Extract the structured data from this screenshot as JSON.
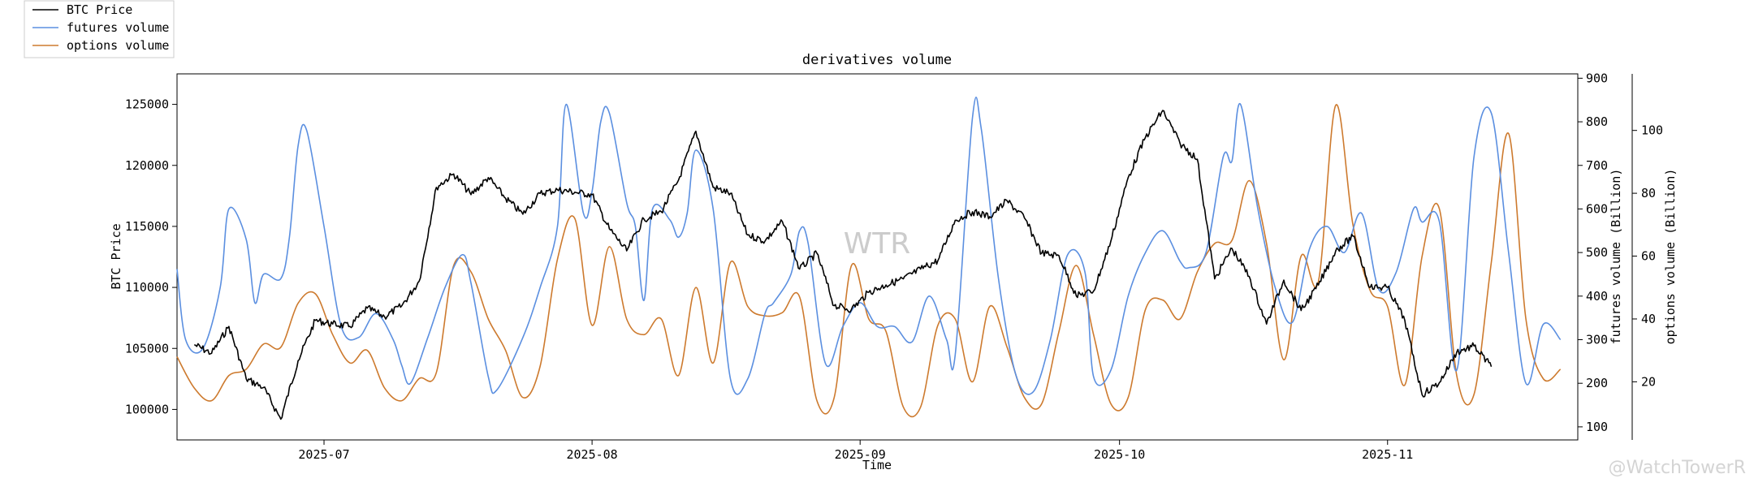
{
  "chart_data": {
    "type": "line",
    "title": "derivatives volume",
    "xlabel": "Time",
    "x_ticks": [
      "2025-07",
      "2025-08",
      "2025-09",
      "2025-10",
      "2025-11"
    ],
    "x_range": [
      "2025-06-14",
      "2025-11-23"
    ],
    "left_axis": {
      "label": "BTC Price",
      "ylim": [
        97500,
        127500
      ],
      "ticks": [
        100000,
        105000,
        110000,
        115000,
        120000,
        125000
      ]
    },
    "right_axis_1": {
      "label": "futures volume (Billion)",
      "ylim": [
        70,
        910
      ],
      "ticks": [
        100,
        200,
        300,
        400,
        500,
        600,
        700,
        800,
        900
      ]
    },
    "right_axis_2": {
      "label": "options volume (Billion)",
      "ylim": [
        1.5,
        118
      ],
      "ticks": [
        20,
        40,
        60,
        80,
        100
      ]
    },
    "legend": {
      "placement": "upper-left outside",
      "entries": [
        "BTC Price",
        "futures volume",
        "options volume"
      ]
    },
    "grid": false,
    "series": [
      {
        "name": "BTC Price",
        "axis": "left",
        "color": "#000000",
        "points": [
          [
            "2025-06-16",
            105300
          ],
          [
            "2025-06-18",
            104600
          ],
          [
            "2025-06-20",
            106800
          ],
          [
            "2025-06-22",
            102500
          ],
          [
            "2025-06-24",
            101800
          ],
          [
            "2025-06-26",
            99200
          ],
          [
            "2025-06-28",
            104000
          ],
          [
            "2025-06-30",
            107300
          ],
          [
            "2025-07-02",
            107000
          ],
          [
            "2025-07-04",
            106800
          ],
          [
            "2025-07-06",
            108300
          ],
          [
            "2025-07-08",
            107600
          ],
          [
            "2025-07-10",
            108500
          ],
          [
            "2025-07-12",
            110500
          ],
          [
            "2025-07-14",
            118200
          ],
          [
            "2025-07-16",
            119300
          ],
          [
            "2025-07-18",
            117600
          ],
          [
            "2025-07-20",
            119000
          ],
          [
            "2025-07-22",
            117300
          ],
          [
            "2025-07-24",
            116000
          ],
          [
            "2025-07-26",
            117700
          ],
          [
            "2025-07-28",
            118000
          ],
          [
            "2025-07-30",
            117800
          ],
          [
            "2025-08-01",
            117600
          ],
          [
            "2025-08-03",
            114800
          ],
          [
            "2025-08-05",
            113000
          ],
          [
            "2025-08-07",
            115600
          ],
          [
            "2025-08-09",
            116200
          ],
          [
            "2025-08-11",
            118800
          ],
          [
            "2025-08-13",
            122800
          ],
          [
            "2025-08-15",
            118200
          ],
          [
            "2025-08-17",
            117700
          ],
          [
            "2025-08-19",
            114300
          ],
          [
            "2025-08-21",
            113800
          ],
          [
            "2025-08-23",
            115400
          ],
          [
            "2025-08-25",
            111500
          ],
          [
            "2025-08-27",
            112800
          ],
          [
            "2025-08-29",
            108500
          ],
          [
            "2025-08-31",
            108200
          ],
          [
            "2025-09-02",
            109600
          ],
          [
            "2025-09-04",
            110200
          ],
          [
            "2025-09-06",
            110700
          ],
          [
            "2025-09-08",
            111500
          ],
          [
            "2025-09-10",
            112200
          ],
          [
            "2025-09-12",
            115500
          ],
          [
            "2025-09-14",
            116200
          ],
          [
            "2025-09-16",
            115800
          ],
          [
            "2025-09-18",
            117100
          ],
          [
            "2025-09-20",
            115700
          ],
          [
            "2025-09-22",
            112800
          ],
          [
            "2025-09-24",
            112600
          ],
          [
            "2025-09-26",
            109300
          ],
          [
            "2025-09-28",
            109700
          ],
          [
            "2025-09-30",
            113800
          ],
          [
            "2025-10-02",
            119000
          ],
          [
            "2025-10-04",
            122300
          ],
          [
            "2025-10-06",
            124500
          ],
          [
            "2025-10-08",
            121800
          ],
          [
            "2025-10-10",
            120500
          ],
          [
            "2025-10-12",
            110700
          ],
          [
            "2025-10-14",
            113200
          ],
          [
            "2025-10-16",
            110900
          ],
          [
            "2025-10-18",
            107000
          ],
          [
            "2025-10-20",
            110600
          ],
          [
            "2025-10-22",
            108100
          ],
          [
            "2025-10-24",
            110200
          ],
          [
            "2025-10-26",
            113000
          ],
          [
            "2025-10-28",
            114200
          ],
          [
            "2025-10-30",
            110000
          ],
          [
            "2025-11-01",
            110000
          ],
          [
            "2025-11-03",
            107300
          ],
          [
            "2025-11-05",
            101200
          ],
          [
            "2025-11-07",
            102200
          ],
          [
            "2025-11-09",
            104700
          ],
          [
            "2025-11-11",
            105200
          ],
          [
            "2025-11-13",
            103500
          ]
        ]
      },
      {
        "name": "futures volume",
        "axis": "right_1",
        "color": "#5b8fe0",
        "points": [
          [
            "2025-06-14",
            462
          ],
          [
            "2025-06-15",
            300
          ],
          [
            "2025-06-17",
            280
          ],
          [
            "2025-06-19",
            420
          ],
          [
            "2025-06-20",
            600
          ],
          [
            "2025-06-22",
            530
          ],
          [
            "2025-06-23",
            385
          ],
          [
            "2025-06-24",
            450
          ],
          [
            "2025-06-26",
            440
          ],
          [
            "2025-06-27",
            535
          ],
          [
            "2025-06-28",
            745
          ],
          [
            "2025-06-29",
            780
          ],
          [
            "2025-07-01",
            560
          ],
          [
            "2025-07-03",
            330
          ],
          [
            "2025-07-05",
            305
          ],
          [
            "2025-07-07",
            360
          ],
          [
            "2025-07-09",
            300
          ],
          [
            "2025-07-10",
            240
          ],
          [
            "2025-07-11",
            200
          ],
          [
            "2025-07-13",
            305
          ],
          [
            "2025-07-15",
            420
          ],
          [
            "2025-07-17",
            495
          ],
          [
            "2025-07-18",
            430
          ],
          [
            "2025-07-20",
            215
          ],
          [
            "2025-07-21",
            185
          ],
          [
            "2025-07-24",
            305
          ],
          [
            "2025-07-26",
            420
          ],
          [
            "2025-07-28",
            560
          ],
          [
            "2025-07-29",
            840
          ],
          [
            "2025-07-31",
            590
          ],
          [
            "2025-08-01",
            640
          ],
          [
            "2025-08-02",
            800
          ],
          [
            "2025-08-03",
            820
          ],
          [
            "2025-08-05",
            615
          ],
          [
            "2025-08-06",
            560
          ],
          [
            "2025-08-07",
            390
          ],
          [
            "2025-08-08",
            600
          ],
          [
            "2025-08-10",
            575
          ],
          [
            "2025-08-11",
            535
          ],
          [
            "2025-08-12",
            590
          ],
          [
            "2025-08-13",
            735
          ],
          [
            "2025-08-15",
            600
          ],
          [
            "2025-08-17",
            210
          ],
          [
            "2025-08-19",
            210
          ],
          [
            "2025-08-21",
            360
          ],
          [
            "2025-08-22",
            385
          ],
          [
            "2025-08-24",
            450
          ],
          [
            "2025-08-25",
            550
          ],
          [
            "2025-08-26",
            520
          ],
          [
            "2025-08-28",
            245
          ],
          [
            "2025-08-30",
            330
          ],
          [
            "2025-09-01",
            385
          ],
          [
            "2025-09-03",
            330
          ],
          [
            "2025-09-05",
            330
          ],
          [
            "2025-09-07",
            295
          ],
          [
            "2025-09-09",
            400
          ],
          [
            "2025-09-11",
            300
          ],
          [
            "2025-09-12",
            265
          ],
          [
            "2025-09-14",
            810
          ],
          [
            "2025-09-15",
            785
          ],
          [
            "2025-09-17",
            440
          ],
          [
            "2025-09-19",
            220
          ],
          [
            "2025-09-21",
            180
          ],
          [
            "2025-09-23",
            300
          ],
          [
            "2025-09-25",
            495
          ],
          [
            "2025-09-27",
            455
          ],
          [
            "2025-09-28",
            215
          ],
          [
            "2025-09-30",
            230
          ],
          [
            "2025-10-02",
            400
          ],
          [
            "2025-10-04",
            500
          ],
          [
            "2025-10-06",
            550
          ],
          [
            "2025-10-08",
            480
          ],
          [
            "2025-10-09",
            465
          ],
          [
            "2025-10-11",
            500
          ],
          [
            "2025-10-13",
            720
          ],
          [
            "2025-10-14",
            710
          ],
          [
            "2025-10-15",
            840
          ],
          [
            "2025-10-17",
            600
          ],
          [
            "2025-10-19",
            420
          ],
          [
            "2025-10-21",
            340
          ],
          [
            "2025-10-23",
            510
          ],
          [
            "2025-10-25",
            560
          ],
          [
            "2025-10-27",
            500
          ],
          [
            "2025-10-29",
            590
          ],
          [
            "2025-10-31",
            415
          ],
          [
            "2025-11-02",
            455
          ],
          [
            "2025-11-04",
            600
          ],
          [
            "2025-11-05",
            570
          ],
          [
            "2025-11-07",
            570
          ],
          [
            "2025-11-09",
            230
          ],
          [
            "2025-11-11",
            720
          ],
          [
            "2025-11-13",
            820
          ],
          [
            "2025-11-15",
            500
          ],
          [
            "2025-11-17",
            200
          ],
          [
            "2025-11-19",
            335
          ],
          [
            "2025-11-21",
            300
          ]
        ]
      },
      {
        "name": "options volume",
        "axis": "right_2",
        "color": "#cd7a2e",
        "points": [
          [
            "2025-06-14",
            28
          ],
          [
            "2025-06-16",
            18
          ],
          [
            "2025-06-18",
            14
          ],
          [
            "2025-06-20",
            22
          ],
          [
            "2025-06-22",
            24
          ],
          [
            "2025-06-24",
            32
          ],
          [
            "2025-06-26",
            31
          ],
          [
            "2025-06-28",
            45
          ],
          [
            "2025-06-30",
            48
          ],
          [
            "2025-07-02",
            35
          ],
          [
            "2025-07-04",
            26
          ],
          [
            "2025-07-06",
            30
          ],
          [
            "2025-07-08",
            18
          ],
          [
            "2025-07-10",
            14
          ],
          [
            "2025-07-12",
            21
          ],
          [
            "2025-07-14",
            23
          ],
          [
            "2025-07-16",
            57
          ],
          [
            "2025-07-18",
            55
          ],
          [
            "2025-07-20",
            40
          ],
          [
            "2025-07-22",
            30
          ],
          [
            "2025-07-24",
            15
          ],
          [
            "2025-07-26",
            25
          ],
          [
            "2025-07-28",
            59
          ],
          [
            "2025-07-30",
            72
          ],
          [
            "2025-08-01",
            38
          ],
          [
            "2025-08-03",
            63
          ],
          [
            "2025-08-05",
            40
          ],
          [
            "2025-08-07",
            35
          ],
          [
            "2025-08-09",
            40
          ],
          [
            "2025-08-11",
            22
          ],
          [
            "2025-08-13",
            50
          ],
          [
            "2025-08-15",
            26
          ],
          [
            "2025-08-17",
            58
          ],
          [
            "2025-08-19",
            44
          ],
          [
            "2025-08-21",
            41
          ],
          [
            "2025-08-23",
            42
          ],
          [
            "2025-08-25",
            47
          ],
          [
            "2025-08-27",
            14
          ],
          [
            "2025-08-29",
            15
          ],
          [
            "2025-08-31",
            57
          ],
          [
            "2025-09-02",
            40
          ],
          [
            "2025-09-04",
            36
          ],
          [
            "2025-09-06",
            12
          ],
          [
            "2025-09-08",
            12
          ],
          [
            "2025-09-10",
            38
          ],
          [
            "2025-09-12",
            40
          ],
          [
            "2025-09-14",
            20
          ],
          [
            "2025-09-16",
            44
          ],
          [
            "2025-09-18",
            31
          ],
          [
            "2025-09-20",
            15
          ],
          [
            "2025-09-22",
            13
          ],
          [
            "2025-09-24",
            36
          ],
          [
            "2025-09-26",
            57
          ],
          [
            "2025-09-28",
            35
          ],
          [
            "2025-09-30",
            13
          ],
          [
            "2025-10-02",
            15
          ],
          [
            "2025-10-04",
            43
          ],
          [
            "2025-10-06",
            46
          ],
          [
            "2025-10-08",
            40
          ],
          [
            "2025-10-10",
            55
          ],
          [
            "2025-10-12",
            64
          ],
          [
            "2025-10-14",
            65
          ],
          [
            "2025-10-16",
            84
          ],
          [
            "2025-10-18",
            64
          ],
          [
            "2025-10-20",
            27
          ],
          [
            "2025-10-22",
            60
          ],
          [
            "2025-10-24",
            52
          ],
          [
            "2025-10-26",
            108
          ],
          [
            "2025-10-28",
            70
          ],
          [
            "2025-10-30",
            49
          ],
          [
            "2025-11-01",
            44
          ],
          [
            "2025-11-03",
            19
          ],
          [
            "2025-11-05",
            60
          ],
          [
            "2025-11-07",
            75
          ],
          [
            "2025-11-09",
            22
          ],
          [
            "2025-11-11",
            16
          ],
          [
            "2025-11-13",
            58
          ],
          [
            "2025-11-15",
            99
          ],
          [
            "2025-11-17",
            40
          ],
          [
            "2025-11-19",
            21
          ],
          [
            "2025-11-21",
            24
          ]
        ]
      }
    ]
  },
  "watermarks": {
    "center": "WTR",
    "corner": "@WatchTowerR"
  }
}
